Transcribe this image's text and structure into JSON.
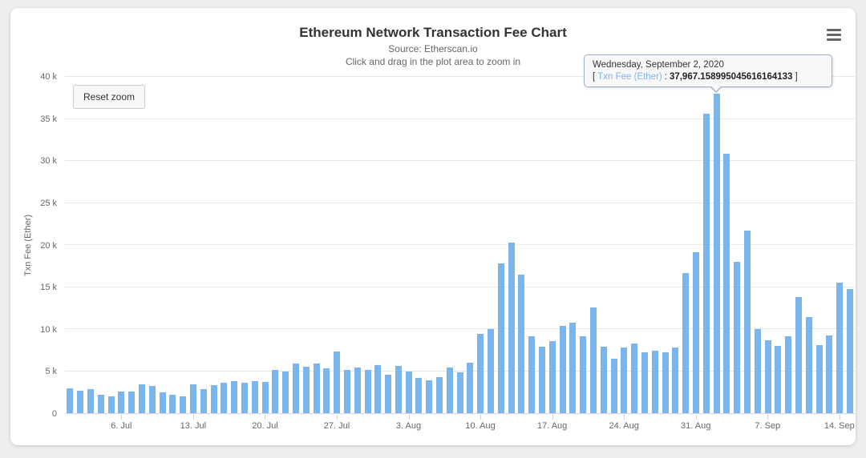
{
  "header": {
    "title": "Ethereum Network Transaction Fee Chart",
    "source": "Source: Etherscan.io",
    "hint": "Click and drag in the plot area to zoom in"
  },
  "toolbar": {
    "reset_zoom_label": "Reset zoom",
    "menu_icon": "hamburger-icon"
  },
  "tooltip": {
    "date": "Wednesday, September 2, 2020",
    "bracket_open": "[",
    "series_label": "Txn Fee (Ether)",
    "separator": ":",
    "value": "37,967.158995045616164133",
    "bracket_close": "]"
  },
  "colors": {
    "bar": "#7cb5ec",
    "gridline": "#e6e6e6",
    "axis_line": "#ccd6eb",
    "tooltip_border": "#9bb0c9",
    "text_primary": "#333333",
    "text_secondary": "#666666"
  },
  "chart_data": {
    "type": "bar",
    "title": "Ethereum Network Transaction Fee Chart",
    "subtitle": [
      "Source: Etherscan.io",
      "Click and drag in the plot area to zoom in"
    ],
    "series_name": "Txn Fee (Ether)",
    "xlabel": "",
    "ylabel": "Txn Fee (Ether)",
    "ylim": [
      0,
      40000
    ],
    "grid": true,
    "legend": false,
    "yticks": [
      0,
      5000,
      10000,
      15000,
      20000,
      25000,
      30000,
      35000,
      40000
    ],
    "ytick_labels": [
      "0",
      "5 k",
      "10 k",
      "15 k",
      "20 k",
      "25 k",
      "30 k",
      "35 k",
      "40 k"
    ],
    "xticks": [
      {
        "label": "6. Jul",
        "day": 6
      },
      {
        "label": "13. Jul",
        "day": 13
      },
      {
        "label": "20. Jul",
        "day": 20
      },
      {
        "label": "27. Jul",
        "day": 27
      },
      {
        "label": "3. Aug",
        "day": 34
      },
      {
        "label": "10. Aug",
        "day": 41
      },
      {
        "label": "17. Aug",
        "day": 48
      },
      {
        "label": "24. Aug",
        "day": 55
      },
      {
        "label": "31. Aug",
        "day": 62
      },
      {
        "label": "7. Sep",
        "day": 69
      },
      {
        "label": "14. Sep",
        "day": 76
      }
    ],
    "dates": [
      "2020-07-01",
      "2020-07-02",
      "2020-07-03",
      "2020-07-04",
      "2020-07-05",
      "2020-07-06",
      "2020-07-07",
      "2020-07-08",
      "2020-07-09",
      "2020-07-10",
      "2020-07-11",
      "2020-07-12",
      "2020-07-13",
      "2020-07-14",
      "2020-07-15",
      "2020-07-16",
      "2020-07-17",
      "2020-07-18",
      "2020-07-19",
      "2020-07-20",
      "2020-07-21",
      "2020-07-22",
      "2020-07-23",
      "2020-07-24",
      "2020-07-25",
      "2020-07-26",
      "2020-07-27",
      "2020-07-28",
      "2020-07-29",
      "2020-07-30",
      "2020-07-31",
      "2020-08-01",
      "2020-08-02",
      "2020-08-03",
      "2020-08-04",
      "2020-08-05",
      "2020-08-06",
      "2020-08-07",
      "2020-08-08",
      "2020-08-09",
      "2020-08-10",
      "2020-08-11",
      "2020-08-12",
      "2020-08-13",
      "2020-08-14",
      "2020-08-15",
      "2020-08-16",
      "2020-08-17",
      "2020-08-18",
      "2020-08-19",
      "2020-08-20",
      "2020-08-21",
      "2020-08-22",
      "2020-08-23",
      "2020-08-24",
      "2020-08-25",
      "2020-08-26",
      "2020-08-27",
      "2020-08-28",
      "2020-08-29",
      "2020-08-30",
      "2020-08-31",
      "2020-09-01",
      "2020-09-02",
      "2020-09-03",
      "2020-09-04",
      "2020-09-05",
      "2020-09-06",
      "2020-09-07",
      "2020-09-08",
      "2020-09-09",
      "2020-09-10",
      "2020-09-11",
      "2020-09-12",
      "2020-09-13",
      "2020-09-14",
      "2020-09-15"
    ],
    "values": [
      3000,
      2700,
      2900,
      2200,
      2000,
      2600,
      2600,
      3400,
      3200,
      2500,
      2200,
      2000,
      3400,
      2900,
      3300,
      3600,
      3800,
      3600,
      3800,
      3700,
      5100,
      5000,
      5900,
      5500,
      5900,
      5300,
      7300,
      5100,
      5400,
      5100,
      5700,
      4600,
      5600,
      5000,
      4200,
      3900,
      4300,
      5400,
      4900,
      6000,
      9400,
      10000,
      17800,
      20300,
      16500,
      9100,
      7900,
      8600,
      10400,
      10800,
      9100,
      12600,
      7900,
      6500,
      7800,
      8300,
      7200,
      7400,
      7200,
      7800,
      16700,
      19100,
      35600,
      37967.15899504562,
      30900,
      18000,
      21700,
      10000,
      8700,
      8000,
      9100,
      13800,
      11400,
      8100,
      9200,
      15500,
      14800
    ],
    "highlight": {
      "index": 63,
      "date": "2020-09-02",
      "value_exact": "37,967.158995045616164133"
    }
  }
}
